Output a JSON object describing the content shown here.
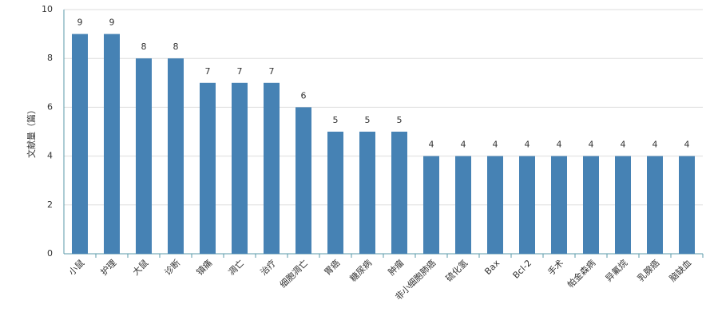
{
  "chart_data": {
    "type": "bar",
    "y_label": "文献量（篇）",
    "categories": [
      "小鼠",
      "护理",
      "大鼠",
      "诊断",
      "镇痛",
      "凋亡",
      "治疗",
      "细胞凋亡",
      "胃癌",
      "糖尿病",
      "肿瘤",
      "非小细胞肺癌",
      "硫化氢",
      "Bax",
      "Bcl-2",
      "手术",
      "帕金森病",
      "异氟烷",
      "乳腺癌",
      "脑缺血"
    ],
    "values": [
      9,
      9,
      8,
      8,
      7,
      7,
      7,
      6,
      5,
      5,
      5,
      4,
      4,
      4,
      4,
      4,
      4,
      4,
      4,
      4
    ],
    "color": "#4682b4",
    "ylim": [
      0,
      10
    ],
    "yticks": [
      0,
      2,
      4,
      6,
      8,
      10
    ],
    "grid": true
  }
}
